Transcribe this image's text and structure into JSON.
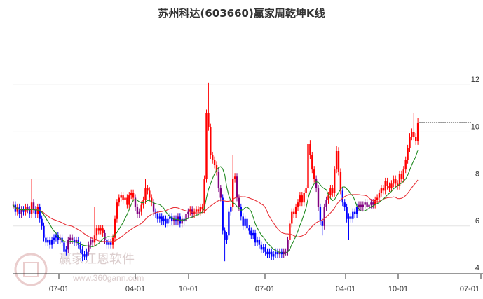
{
  "chart_data": {
    "type": "candlestick",
    "title": "苏州科达(603660)赢家周乾坤K线",
    "yticks": [
      4,
      6,
      8,
      10,
      12
    ],
    "ylim": [
      4,
      12.2
    ],
    "xticks": [
      "07-01",
      "04-01",
      "10-01",
      "07-01",
      "04-01",
      "10-01",
      "07-01"
    ],
    "grid": true,
    "colors": {
      "up": "#ff0000",
      "down": "#0000ff",
      "mixed": "#800080",
      "ma_short": "#228b22",
      "ma_long": "#e8333a"
    },
    "moving_averages": [
      {
        "period": 10,
        "color": "#228b22"
      },
      {
        "period": 30,
        "color": "#e8333a"
      }
    ],
    "last_price_line": 10.4,
    "close": [
      6.9,
      6.6,
      6.8,
      6.5,
      6.7,
      6.6,
      6.8,
      6.7,
      6.5,
      7.0,
      6.7,
      6.5,
      6.8,
      6.3,
      6.0,
      5.5,
      5.3,
      5.4,
      5.2,
      5.4,
      5.5,
      5.6,
      5.4,
      5.5,
      5.3,
      4.9,
      5.0,
      5.4,
      5.5,
      5.4,
      5.3,
      5.4,
      5.2,
      5.0,
      4.8,
      4.7,
      4.9,
      5.2,
      5.4,
      5.3,
      5.6,
      5.9,
      5.8,
      5.9,
      5.7,
      5.4,
      5.2,
      5.3,
      5.2,
      5.5,
      6.3,
      7.0,
      7.2,
      7.3,
      7.1,
      7.2,
      6.9,
      7.3,
      7.4,
      7.2,
      6.8,
      6.5,
      6.6,
      6.9,
      7.1,
      7.6,
      7.5,
      7.2,
      7.0,
      6.6,
      6.5,
      6.3,
      6.4,
      6.2,
      6.3,
      6.1,
      6.3,
      6.4,
      6.2,
      6.3,
      6.2,
      6.4,
      6.1,
      6.3,
      6.2,
      6.5,
      6.6,
      6.7,
      6.5,
      6.6,
      6.7,
      6.6,
      6.8,
      6.7,
      8.0,
      10.8,
      10.2,
      9.0,
      8.8,
      8.6,
      8.3,
      7.6,
      7.2,
      5.8,
      5.4,
      5.6,
      6.6,
      6.8,
      8.0,
      8.1,
      7.2,
      6.8,
      6.4,
      6.0,
      6.3,
      5.9,
      5.8,
      5.6,
      5.7,
      5.3,
      5.4,
      5.2,
      5.0,
      5.1,
      4.9,
      4.8,
      4.9,
      4.7,
      4.8,
      4.9,
      4.8,
      4.9,
      4.8,
      4.9,
      4.9,
      5.4,
      6.1,
      6.6,
      6.5,
      6.8,
      7.0,
      7.3,
      7.0,
      7.4,
      7.6,
      9.5,
      9.0,
      8.4,
      8.0,
      7.6,
      6.8,
      6.2,
      6.0,
      6.8,
      7.1,
      7.3,
      7.6,
      7.4,
      8.4,
      9.2,
      8.3,
      7.5,
      7.0,
      6.8,
      6.3,
      6.4,
      6.3,
      6.6,
      6.5,
      6.8,
      6.9,
      6.8,
      6.9,
      7.0,
      6.8,
      6.9,
      7.0,
      6.9,
      7.1,
      7.2,
      7.4,
      7.6,
      7.5,
      7.9,
      7.7,
      7.6,
      7.8,
      8.0,
      7.8,
      7.7,
      8.2,
      8.0,
      8.4,
      8.8,
      9.3,
      9.8,
      10.0,
      9.8,
      9.6,
      10.4
    ],
    "extremes": [
      {
        "index": 9,
        "high": 8.0
      },
      {
        "index": 34,
        "low": 4.5
      },
      {
        "index": 40,
        "high": 6.8
      },
      {
        "index": 55,
        "high": 8.0
      },
      {
        "index": 65,
        "high": 8.0
      },
      {
        "index": 96,
        "high": 12.1
      },
      {
        "index": 104,
        "low": 4.5
      },
      {
        "index": 108,
        "high": 9.0
      },
      {
        "index": 145,
        "high": 10.8
      },
      {
        "index": 152,
        "low": 5.6
      },
      {
        "index": 159,
        "high": 9.4
      },
      {
        "index": 165,
        "low": 5.4
      },
      {
        "index": 197,
        "high": 10.8
      },
      {
        "index": 199,
        "high": 10.6
      }
    ]
  },
  "watermark": {
    "name": "赢家江恩软件",
    "url": "www.360gann.com"
  }
}
